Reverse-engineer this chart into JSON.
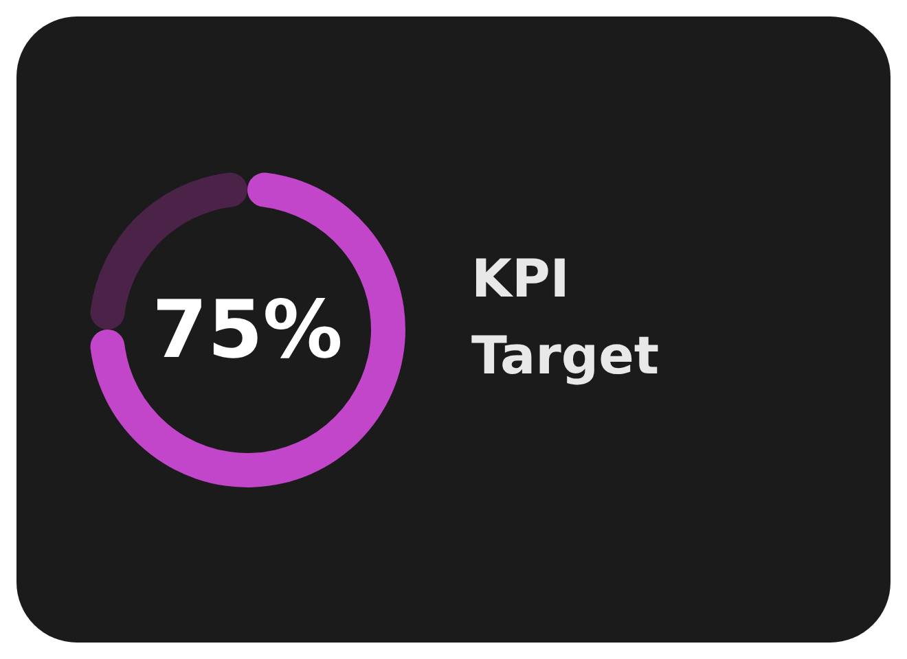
{
  "chart_data": {
    "type": "donut",
    "title": "KPI Target",
    "categories": [
      null,
      null
    ],
    "values": [
      75,
      25
    ],
    "colors": [
      "#c246c9",
      "#4b2349"
    ],
    "annotations": [
      "75%"
    ]
  }
}
